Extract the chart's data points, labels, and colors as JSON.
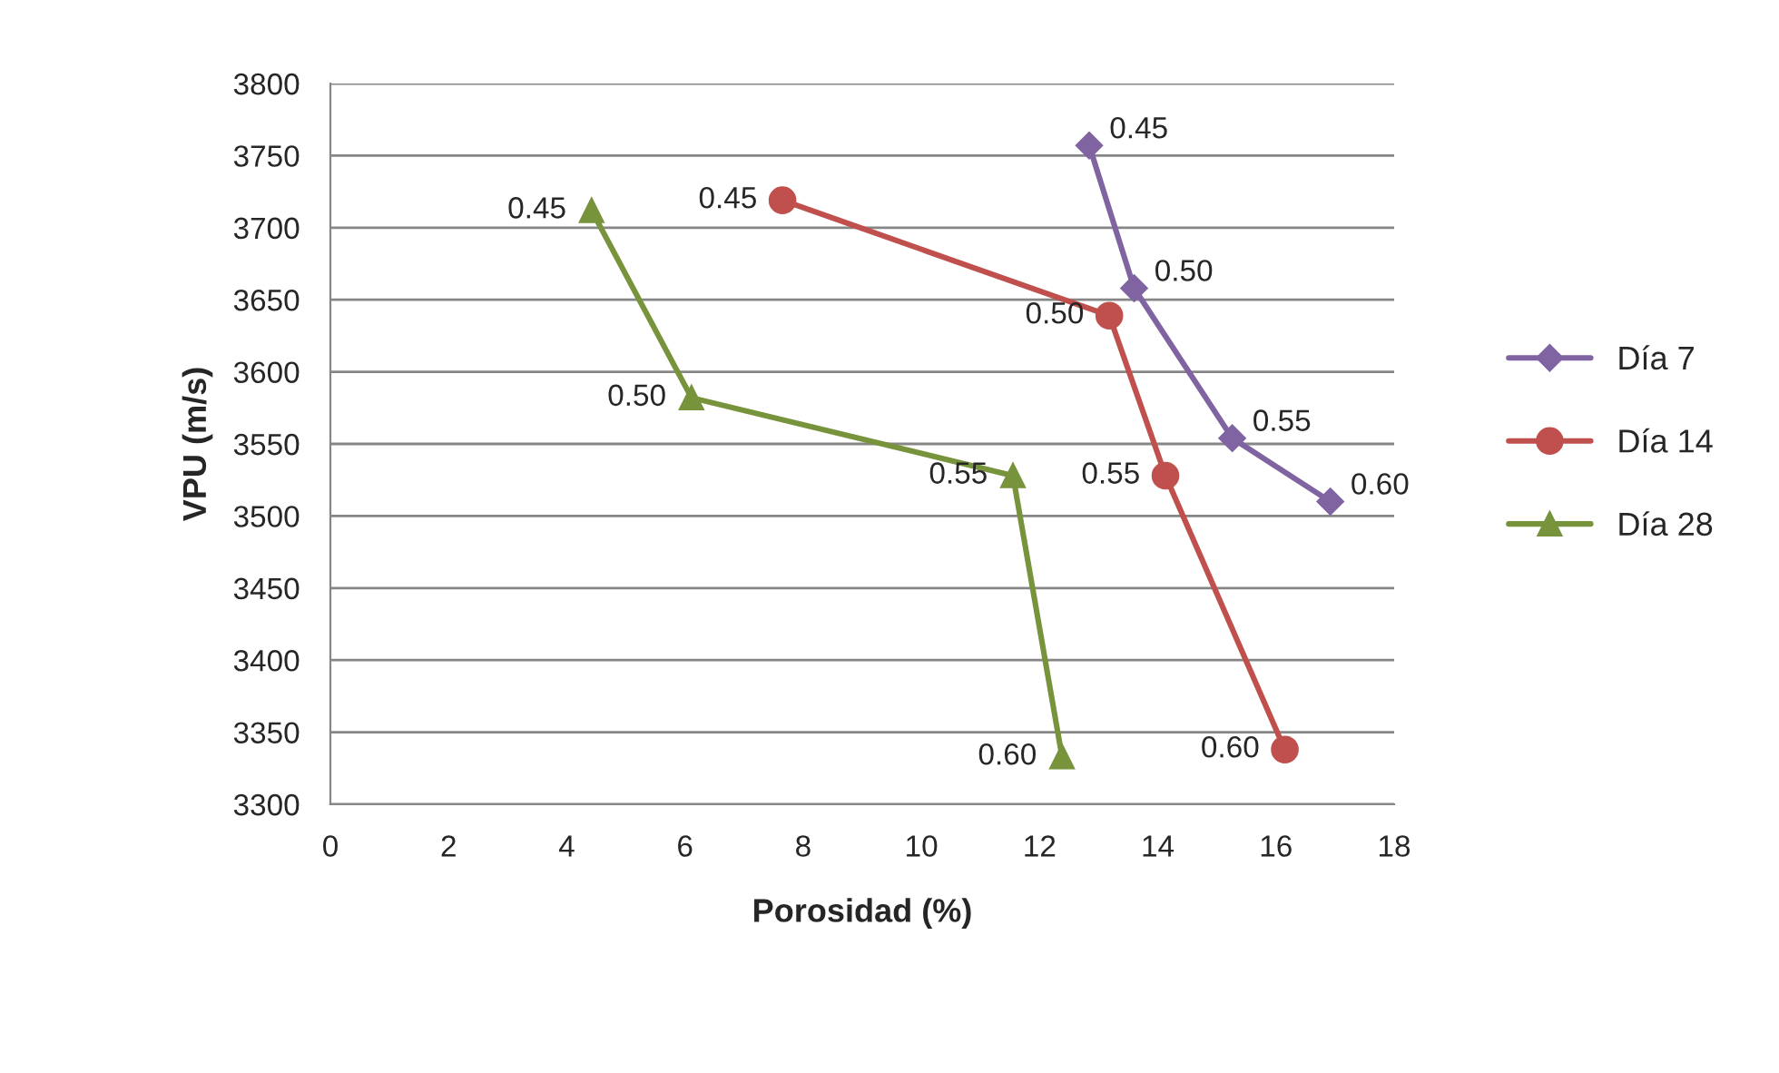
{
  "chart_data": {
    "type": "line",
    "xlabel": "Porosidad (%)",
    "ylabel": "VPU (m/s)",
    "xlim": [
      0,
      18
    ],
    "xticks": [
      0,
      2,
      4,
      6,
      8,
      10,
      12,
      14,
      16,
      18
    ],
    "ylim": [
      3300,
      3800
    ],
    "yticks": [
      3300,
      3350,
      3400,
      3450,
      3500,
      3550,
      3600,
      3650,
      3700,
      3750,
      3800
    ],
    "grid": "y",
    "legend": "right",
    "series": [
      {
        "name": "Día 7",
        "color": "#8064a2",
        "marker": "diamond",
        "x": [
          12.84,
          13.6,
          15.26,
          16.92
        ],
        "values": [
          3757,
          3658,
          3554,
          3510
        ]
      },
      {
        "name": "Día 14",
        "color": "#c0504d",
        "marker": "circle",
        "x": [
          7.65,
          13.18,
          14.13,
          16.15
        ],
        "values": [
          3719,
          3639,
          3528,
          3338
        ]
      },
      {
        "name": "Día 28",
        "color": "#77933c",
        "marker": "triangle",
        "x": [
          4.42,
          6.11,
          11.55,
          12.38
        ],
        "values": [
          3712,
          3582,
          3528,
          3333
        ]
      }
    ],
    "annotations": [
      {
        "text": "0.45",
        "x": 12.84,
        "y": 3757
      },
      {
        "text": "0.50",
        "x": 13.6,
        "y": 3658
      },
      {
        "text": "0.55",
        "x": 15.26,
        "y": 3554
      },
      {
        "text": "0.60",
        "x": 16.92,
        "y": 3510
      },
      {
        "text": "0.45",
        "x": 7.65,
        "y": 3719
      },
      {
        "text": "0.50",
        "x": 13.18,
        "y": 3639
      },
      {
        "text": "0.55",
        "x": 14.13,
        "y": 3528
      },
      {
        "text": "0.60",
        "x": 16.15,
        "y": 3338
      },
      {
        "text": "0.45",
        "x": 4.42,
        "y": 3712
      },
      {
        "text": "0.50",
        "x": 6.11,
        "y": 3582
      },
      {
        "text": "0.55",
        "x": 11.55,
        "y": 3528
      },
      {
        "text": "0.60",
        "x": 12.38,
        "y": 3333
      }
    ]
  }
}
